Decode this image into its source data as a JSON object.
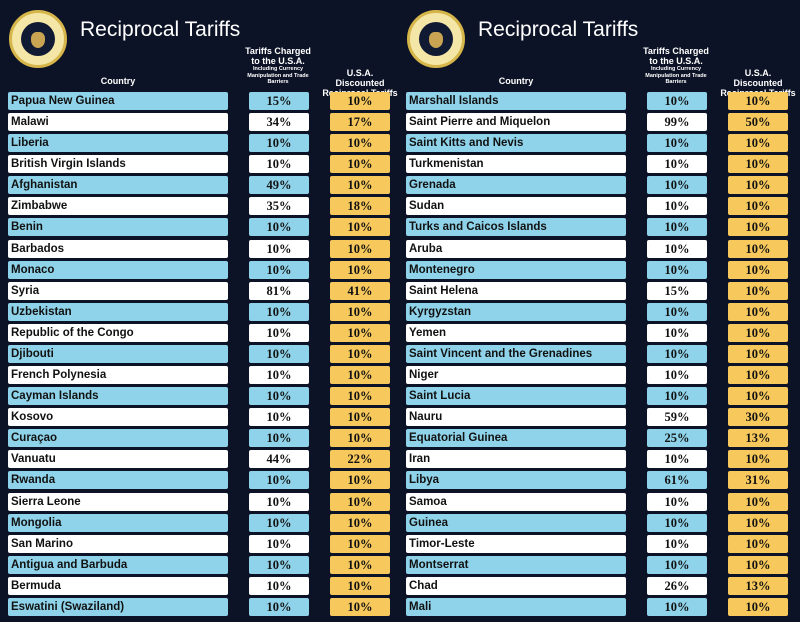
{
  "colors": {
    "background": "#0d1326",
    "row_blue": "#8fd3ea",
    "row_white": "#ffffff",
    "reciprocal": "#f7c85c"
  },
  "logo": "Seal of the President of the United States",
  "panels": [
    {
      "title": "Reciprocal Tariffs",
      "headers": {
        "country": "Country",
        "tariffs_charged": "Tariffs Charged to the U.S.A.",
        "tariffs_note": "Including Currency Manipulation and Trade Barriers",
        "reciprocal": "U.S.A. Discounted Reciprocal Tariffs"
      },
      "rows": [
        [
          "Papua New Guinea",
          "15%",
          "10%"
        ],
        [
          "Malawi",
          "34%",
          "17%"
        ],
        [
          "Liberia",
          "10%",
          "10%"
        ],
        [
          "British Virgin Islands",
          "10%",
          "10%"
        ],
        [
          "Afghanistan",
          "49%",
          "10%"
        ],
        [
          "Zimbabwe",
          "35%",
          "18%"
        ],
        [
          "Benin",
          "10%",
          "10%"
        ],
        [
          "Barbados",
          "10%",
          "10%"
        ],
        [
          "Monaco",
          "10%",
          "10%"
        ],
        [
          "Syria",
          "81%",
          "41%"
        ],
        [
          "Uzbekistan",
          "10%",
          "10%"
        ],
        [
          "Republic of the Congo",
          "10%",
          "10%"
        ],
        [
          "Djibouti",
          "10%",
          "10%"
        ],
        [
          "French Polynesia",
          "10%",
          "10%"
        ],
        [
          "Cayman Islands",
          "10%",
          "10%"
        ],
        [
          "Kosovo",
          "10%",
          "10%"
        ],
        [
          "Curaçao",
          "10%",
          "10%"
        ],
        [
          "Vanuatu",
          "44%",
          "22%"
        ],
        [
          "Rwanda",
          "10%",
          "10%"
        ],
        [
          "Sierra Leone",
          "10%",
          "10%"
        ],
        [
          "Mongolia",
          "10%",
          "10%"
        ],
        [
          "San Marino",
          "10%",
          "10%"
        ],
        [
          "Antigua and Barbuda",
          "10%",
          "10%"
        ],
        [
          "Bermuda",
          "10%",
          "10%"
        ],
        [
          "Eswatini (Swaziland)",
          "10%",
          "10%"
        ]
      ]
    },
    {
      "title": "Reciprocal Tariffs",
      "headers": {
        "country": "Country",
        "tariffs_charged": "Tariffs Charged to the U.S.A.",
        "tariffs_note": "Including Currency Manipulation and Trade Barriers",
        "reciprocal": "U.S.A. Discounted Reciprocal Tariffs"
      },
      "rows": [
        [
          "Marshall Islands",
          "10%",
          "10%"
        ],
        [
          "Saint Pierre and Miquelon",
          "99%",
          "50%"
        ],
        [
          "Saint Kitts and Nevis",
          "10%",
          "10%"
        ],
        [
          "Turkmenistan",
          "10%",
          "10%"
        ],
        [
          "Grenada",
          "10%",
          "10%"
        ],
        [
          "Sudan",
          "10%",
          "10%"
        ],
        [
          "Turks and Caicos Islands",
          "10%",
          "10%"
        ],
        [
          "Aruba",
          "10%",
          "10%"
        ],
        [
          "Montenegro",
          "10%",
          "10%"
        ],
        [
          "Saint Helena",
          "15%",
          "10%"
        ],
        [
          "Kyrgyzstan",
          "10%",
          "10%"
        ],
        [
          "Yemen",
          "10%",
          "10%"
        ],
        [
          "Saint Vincent and the Grenadines",
          "10%",
          "10%"
        ],
        [
          "Niger",
          "10%",
          "10%"
        ],
        [
          "Saint Lucia",
          "10%",
          "10%"
        ],
        [
          "Nauru",
          "59%",
          "30%"
        ],
        [
          "Equatorial Guinea",
          "25%",
          "13%"
        ],
        [
          "Iran",
          "10%",
          "10%"
        ],
        [
          "Libya",
          "61%",
          "31%"
        ],
        [
          "Samoa",
          "10%",
          "10%"
        ],
        [
          "Guinea",
          "10%",
          "10%"
        ],
        [
          "Timor-Leste",
          "10%",
          "10%"
        ],
        [
          "Montserrat",
          "10%",
          "10%"
        ],
        [
          "Chad",
          "26%",
          "13%"
        ],
        [
          "Mali",
          "10%",
          "10%"
        ]
      ]
    }
  ]
}
